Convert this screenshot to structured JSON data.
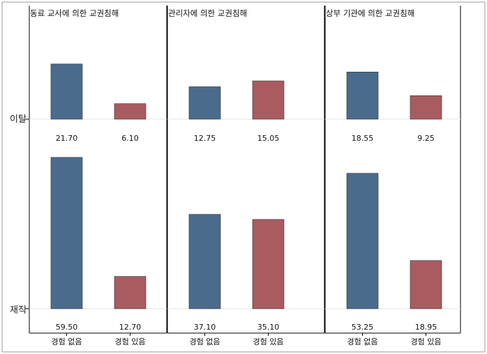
{
  "chart_data": {
    "type": "bar",
    "layout": "small multiples (3 panels × 2 rows)",
    "panels": [
      {
        "title": "동료 교사에 의한 교권침해",
        "rows": [
          {
            "label": "이탈",
            "values": [
              21.7,
              6.1
            ],
            "value_labels": [
              "21.70",
              "6.10"
            ]
          },
          {
            "label": "재직",
            "values": [
              59.5,
              12.7
            ],
            "value_labels": [
              "59.50",
              "12.70"
            ]
          }
        ]
      },
      {
        "title": "관리자에 의한 교권침해",
        "rows": [
          {
            "label": "이탈",
            "values": [
              12.75,
              15.05
            ],
            "value_labels": [
              "12.75",
              "15.05"
            ]
          },
          {
            "label": "재직",
            "values": [
              37.1,
              35.1
            ],
            "value_labels": [
              "37.10",
              "35.10"
            ]
          }
        ]
      },
      {
        "title": "상부 기관에 의한 교권침해",
        "rows": [
          {
            "label": "이탈",
            "values": [
              18.55,
              9.25
            ],
            "value_labels": [
              "18.55",
              "9.25"
            ]
          },
          {
            "label": "재직",
            "values": [
              53.25,
              18.95
            ],
            "value_labels": [
              "53.25",
              "18.95"
            ]
          }
        ]
      }
    ],
    "categories": [
      "경험 없음",
      "경험 있음"
    ],
    "colors": [
      "#4a6b8c",
      "#a85c60"
    ],
    "grid": false,
    "legend": "none"
  }
}
